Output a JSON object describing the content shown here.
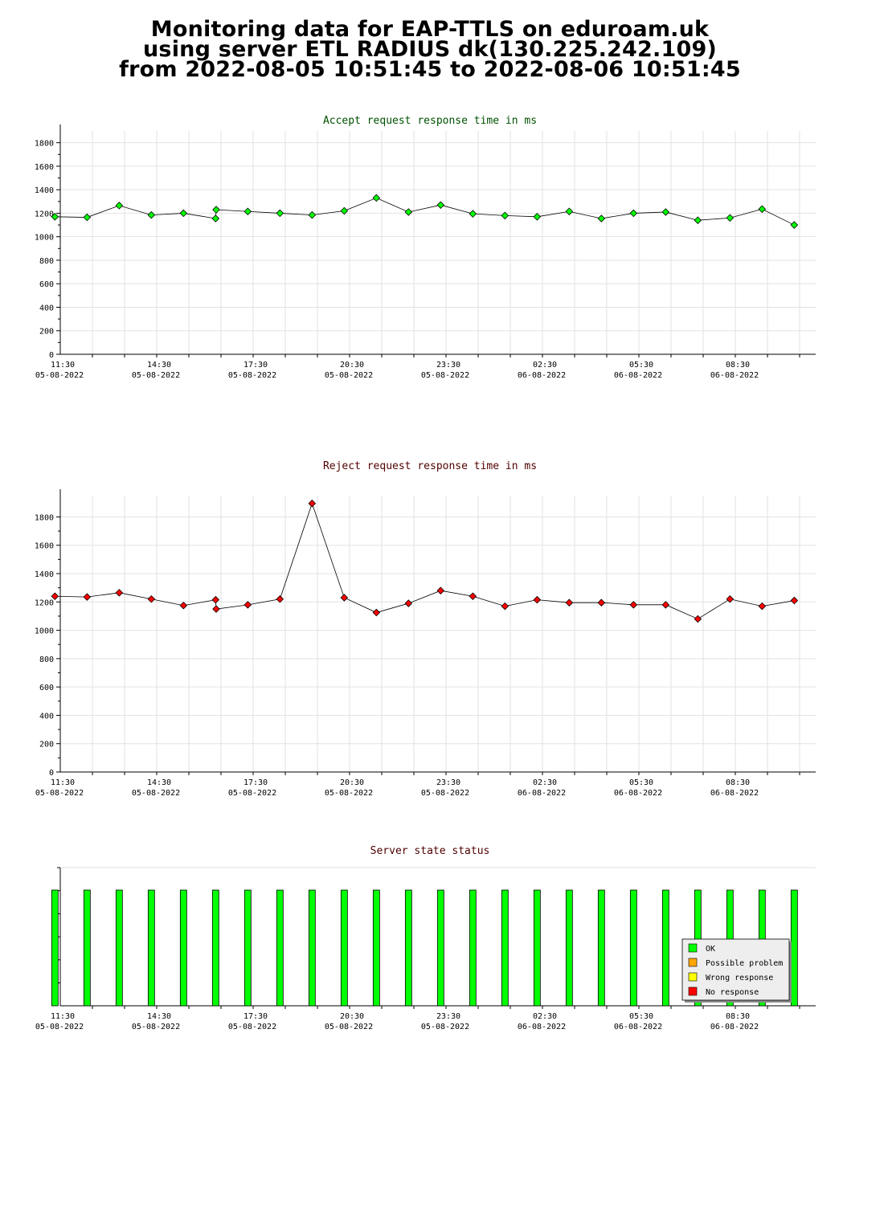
{
  "page_title": {
    "line1": "Monitoring data for EAP-TTLS on eduroam.uk",
    "line2": "using server ETL RADIUS dk(130.225.242.109)",
    "line3": "from 2022-08-05 10:51:45 to 2022-08-06 10:51:45"
  },
  "chart_data": [
    {
      "type": "line",
      "title": "Accept request response time in ms",
      "title_color": "#005000",
      "marker_color": "#00ff00",
      "ylim": [
        0,
        1900
      ],
      "yticks": [
        0,
        200,
        400,
        600,
        800,
        1000,
        1200,
        1400,
        1600,
        1800
      ],
      "x_labels": [
        {
          "time": "11:30",
          "date": "05-08-2022"
        },
        {
          "time": "14:30",
          "date": "05-08-2022"
        },
        {
          "time": "17:30",
          "date": "05-08-2022"
        },
        {
          "time": "20:30",
          "date": "05-08-2022"
        },
        {
          "time": "23:30",
          "date": "05-08-2022"
        },
        {
          "time": "02:30",
          "date": "06-08-2022"
        },
        {
          "time": "05:30",
          "date": "06-08-2022"
        },
        {
          "time": "08:30",
          "date": "06-08-2022"
        }
      ],
      "x": [
        "11:00",
        "12:00",
        "13:00",
        "14:00",
        "15:00",
        "16:00",
        "16:01",
        "17:00",
        "18:00",
        "19:00",
        "20:00",
        "21:00",
        "22:00",
        "23:00",
        "00:00",
        "01:00",
        "02:00",
        "03:00",
        "04:00",
        "05:00",
        "06:00",
        "07:00",
        "08:00",
        "09:00",
        "10:00"
      ],
      "values": [
        1170,
        1165,
        1265,
        1185,
        1200,
        1155,
        1230,
        1215,
        1200,
        1185,
        1220,
        1330,
        1210,
        1270,
        1195,
        1180,
        1170,
        1215,
        1155,
        1200,
        1210,
        1140,
        1160,
        1235,
        1100
      ],
      "grid": true
    },
    {
      "type": "line",
      "title": "Reject request response time in ms",
      "title_color": "#500000",
      "marker_color": "#ff0000",
      "ylim": [
        0,
        1950
      ],
      "yticks": [
        0,
        200,
        400,
        600,
        800,
        1000,
        1200,
        1400,
        1600,
        1800
      ],
      "x_labels": [
        {
          "time": "11:30",
          "date": "05-08-2022"
        },
        {
          "time": "14:30",
          "date": "05-08-2022"
        },
        {
          "time": "17:30",
          "date": "05-08-2022"
        },
        {
          "time": "20:30",
          "date": "05-08-2022"
        },
        {
          "time": "23:30",
          "date": "05-08-2022"
        },
        {
          "time": "02:30",
          "date": "06-08-2022"
        },
        {
          "time": "05:30",
          "date": "06-08-2022"
        },
        {
          "time": "08:30",
          "date": "06-08-2022"
        }
      ],
      "x": [
        "11:00",
        "12:00",
        "13:00",
        "14:00",
        "15:00",
        "16:00",
        "16:01",
        "17:00",
        "18:00",
        "19:00",
        "20:00",
        "21:00",
        "22:00",
        "23:00",
        "00:00",
        "01:00",
        "02:00",
        "03:00",
        "04:00",
        "05:00",
        "06:00",
        "07:00",
        "08:00",
        "09:00",
        "10:00"
      ],
      "values": [
        1240,
        1235,
        1265,
        1220,
        1175,
        1215,
        1150,
        1180,
        1220,
        1895,
        1230,
        1125,
        1190,
        1280,
        1240,
        1170,
        1215,
        1195,
        1195,
        1180,
        1180,
        1080,
        1220,
        1170,
        1210
      ],
      "grid": true
    },
    {
      "type": "bar",
      "title": "Server state status",
      "title_color": "#500000",
      "x_labels": [
        {
          "time": "11:30",
          "date": "05-08-2022"
        },
        {
          "time": "14:30",
          "date": "05-08-2022"
        },
        {
          "time": "17:30",
          "date": "05-08-2022"
        },
        {
          "time": "20:30",
          "date": "05-08-2022"
        },
        {
          "time": "23:30",
          "date": "05-08-2022"
        },
        {
          "time": "02:30",
          "date": "06-08-2022"
        },
        {
          "time": "05:30",
          "date": "06-08-2022"
        },
        {
          "time": "08:30",
          "date": "06-08-2022"
        }
      ],
      "x": [
        "11:00",
        "12:00",
        "13:00",
        "14:00",
        "15:00",
        "16:00",
        "17:00",
        "18:00",
        "19:00",
        "20:00",
        "21:00",
        "22:00",
        "23:00",
        "00:00",
        "01:00",
        "02:00",
        "03:00",
        "04:00",
        "05:00",
        "06:00",
        "07:00",
        "08:00",
        "09:00",
        "10:00"
      ],
      "values": [
        "OK",
        "OK",
        "OK",
        "OK",
        "OK",
        "OK",
        "OK",
        "OK",
        "OK",
        "OK",
        "OK",
        "OK",
        "OK",
        "OK",
        "OK",
        "OK",
        "OK",
        "OK",
        "OK",
        "OK",
        "OK",
        "OK",
        "OK",
        "OK"
      ],
      "legend_position": "bottom-right",
      "legend": [
        {
          "label": "OK",
          "color": "#00ff00"
        },
        {
          "label": "Possible problem",
          "color": "#ffa500"
        },
        {
          "label": "Wrong response",
          "color": "#ffff00"
        },
        {
          "label": "No response",
          "color": "#ff0000"
        }
      ]
    }
  ]
}
